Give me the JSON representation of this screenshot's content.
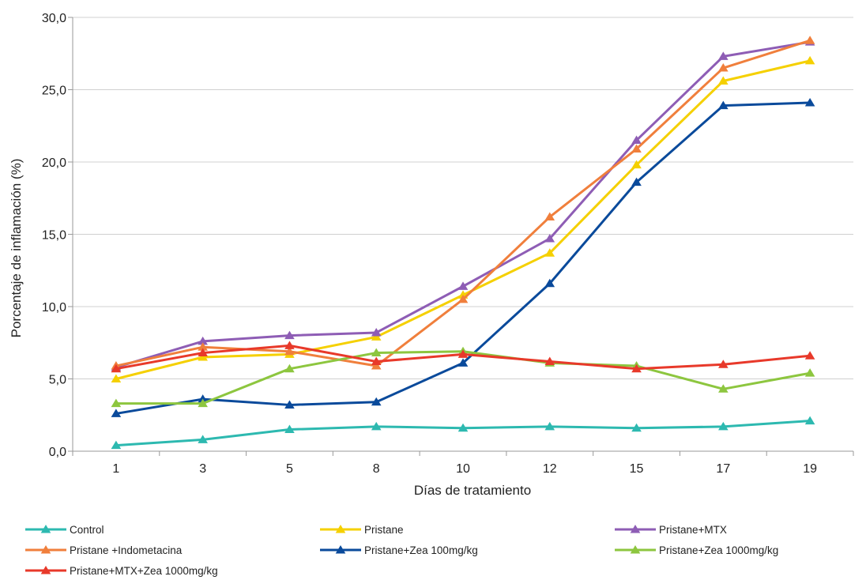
{
  "chart_data": {
    "type": "line",
    "title": "",
    "xlabel": "Días de tratamiento",
    "ylabel": "Porcentaje de inflamación (%)",
    "categories": [
      "1",
      "3",
      "5",
      "8",
      "10",
      "12",
      "15",
      "17",
      "19"
    ],
    "ylim": [
      0,
      30
    ],
    "yticks": [
      "0,0",
      "5,0",
      "10,0",
      "15,0",
      "20,0",
      "25,0",
      "30,0"
    ],
    "grid": true,
    "legend_position": "bottom",
    "series": [
      {
        "name": "Control",
        "color": "#2db9b0",
        "values": [
          0.4,
          0.8,
          1.5,
          1.7,
          1.6,
          1.7,
          1.6,
          1.7,
          2.1
        ]
      },
      {
        "name": "Pristane",
        "color": "#f5d000",
        "values": [
          5.0,
          6.5,
          6.7,
          7.9,
          10.8,
          13.7,
          19.8,
          25.6,
          27.0
        ]
      },
      {
        "name": "Pristane+MTX",
        "color": "#8e5db5",
        "values": [
          5.8,
          7.6,
          8.0,
          8.2,
          11.4,
          14.7,
          21.5,
          27.3,
          28.3
        ]
      },
      {
        "name": "Pristane +Indometacina",
        "color": "#f07f3c",
        "values": [
          5.9,
          7.2,
          6.9,
          5.9,
          10.5,
          16.2,
          20.9,
          26.5,
          28.4
        ]
      },
      {
        "name": "Pristane+Zea 100mg/kg",
        "color": "#0a4a9b",
        "values": [
          2.6,
          3.6,
          3.2,
          3.4,
          6.1,
          11.6,
          18.6,
          23.9,
          24.1
        ]
      },
      {
        "name": "Pristane+Zea 1000mg/kg",
        "color": "#8dc63f",
        "values": [
          3.3,
          3.3,
          5.7,
          6.8,
          6.9,
          6.1,
          5.9,
          4.3,
          5.4
        ]
      },
      {
        "name": "Pristane+MTX+Zea 1000mg/kg",
        "color": "#e8392a",
        "values": [
          5.7,
          6.8,
          7.3,
          6.2,
          6.7,
          6.2,
          5.7,
          6.0,
          6.6
        ]
      }
    ]
  }
}
